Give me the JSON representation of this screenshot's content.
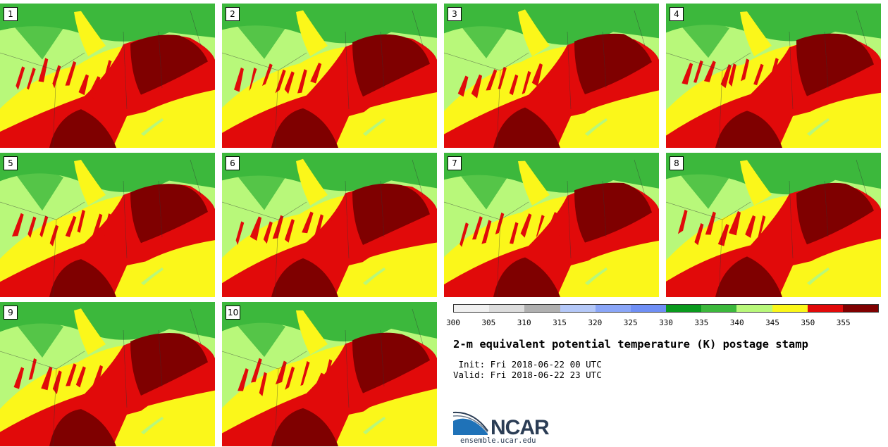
{
  "panels": [
    {
      "label": "1"
    },
    {
      "label": "2"
    },
    {
      "label": "3"
    },
    {
      "label": "4"
    },
    {
      "label": "5"
    },
    {
      "label": "6"
    },
    {
      "label": "7"
    },
    {
      "label": "8"
    },
    {
      "label": "9"
    },
    {
      "label": "10"
    }
  ],
  "colorbar": {
    "colors": [
      "#f0f0f0",
      "#dcdcdc",
      "#b0b0b0",
      "#b4c8f8",
      "#8aa6f8",
      "#6f8ff5",
      "#0a9a1e",
      "#3cb83c",
      "#b8f87a",
      "#fbf71a",
      "#e10a0a",
      "#7f0000"
    ],
    "ticks": [
      "300",
      "305",
      "310",
      "315",
      "320",
      "325",
      "330",
      "335",
      "340",
      "345",
      "350",
      "355"
    ]
  },
  "title": "2-m equivalent potential temperature (K) postage stamp",
  "init_line": " Init: Fri 2018-06-22 00 UTC",
  "valid_line": "Valid: Fri 2018-06-22 23 UTC",
  "logo": {
    "text": "NCAR",
    "url": "ensemble.ucar.edu",
    "colors": {
      "blue": "#1f72b8",
      "navy": "#2b3d55"
    }
  }
}
